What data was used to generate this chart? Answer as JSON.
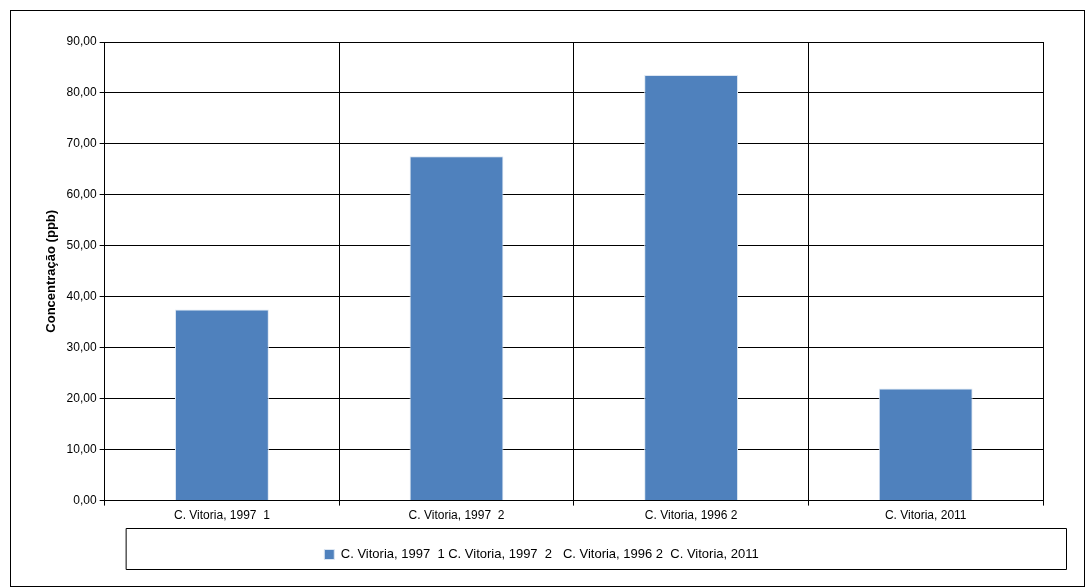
{
  "chart_data": {
    "type": "bar",
    "categories": [
      "C. Vitoria, 1997  1",
      "C. Vitoria, 1997  2",
      "C. Vitoria, 1996 2",
      "C. Vitoria, 2011"
    ],
    "series": [
      {
        "name": "C. Vitoria, 1997  1 C. Vitoria, 1997  2   C. Vitoria, 1996 2  C. Vitoria, 2011",
        "color": "#4f81bd",
        "values": [
          37.5,
          67.6,
          83.5,
          22.0
        ]
      }
    ],
    "ylabel": "Concentração (ppb)",
    "ylim": [
      0,
      90
    ],
    "yticks": [
      {
        "value": 0,
        "label": "0,00"
      },
      {
        "value": 10,
        "label": "10,00"
      },
      {
        "value": 20,
        "label": "20,00"
      },
      {
        "value": 30,
        "label": "30,00"
      },
      {
        "value": 40,
        "label": "40,00"
      },
      {
        "value": 50,
        "label": "50,00"
      },
      {
        "value": 60,
        "label": "60,00"
      },
      {
        "value": 70,
        "label": "70,00"
      },
      {
        "value": 80,
        "label": "80,00"
      },
      {
        "value": 90,
        "label": "90,00"
      }
    ],
    "grid": true,
    "legend": "bottom"
  }
}
